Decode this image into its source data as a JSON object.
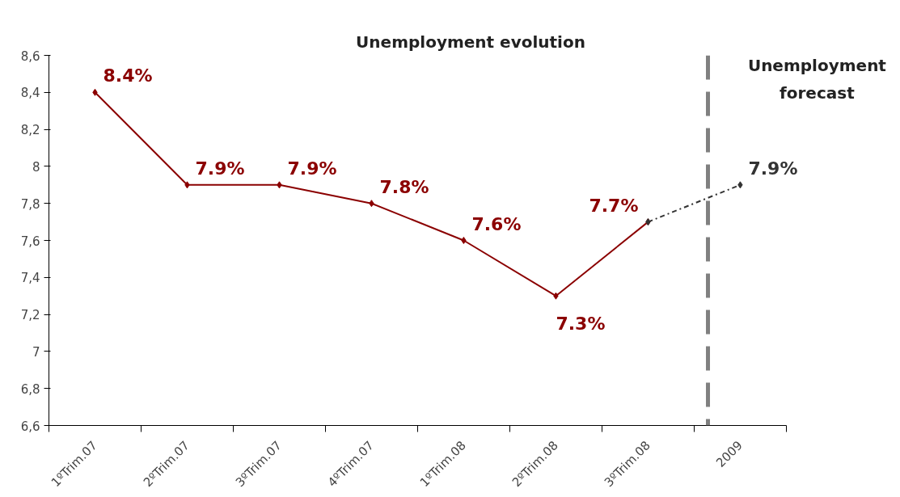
{
  "chart_data": {
    "type": "line",
    "title": "Unemployment evolution",
    "categories": [
      "1ºTrim.07",
      "2ºTrim.07",
      "3ºTrim.07",
      "4ºTrim.07",
      "1ºTrim.08",
      "2ºTrim.08",
      "3ºTrim.08",
      "2009"
    ],
    "series": [
      {
        "color": "#8b0000",
        "values": [
          8.4,
          7.9,
          7.9,
          7.8,
          7.6,
          7.3,
          7.7,
          null
        ],
        "value_labels": [
          "8.4%",
          "7.9%",
          "7.9%",
          "7.8%",
          "7.6%",
          "7.3%",
          "7.7%",
          null
        ]
      },
      {
        "color": "#333333",
        "line_style": "dashed",
        "values": [
          null,
          null,
          null,
          null,
          null,
          null,
          7.7,
          7.9
        ],
        "value_labels": [
          null,
          null,
          null,
          null,
          null,
          null,
          null,
          "7.9%"
        ]
      }
    ],
    "ylim": [
      6.6,
      8.6
    ],
    "yticks": [
      {
        "value": 6.6,
        "label": "6,6"
      },
      {
        "value": 6.8,
        "label": "6,8"
      },
      {
        "value": 7,
        "label": "7"
      },
      {
        "value": 7.2,
        "label": "7,2"
      },
      {
        "value": 7.4,
        "label": "7,4"
      },
      {
        "value": 7.6,
        "label": "7,6"
      },
      {
        "value": 7.8,
        "label": "7,8"
      },
      {
        "value": 8,
        "label": "8"
      },
      {
        "value": 8.2,
        "label": "8,2"
      },
      {
        "value": 8.4,
        "label": "8,4"
      },
      {
        "value": 8.6,
        "label": "8,6"
      }
    ],
    "ref_lines": [
      {
        "axis": "x",
        "value": "2009",
        "color": "#808080",
        "line_style": "dashed"
      }
    ],
    "annotations": [
      "Unemployment forecast"
    ],
    "marker": "diamond",
    "line_style": "solid",
    "grid": false
  }
}
